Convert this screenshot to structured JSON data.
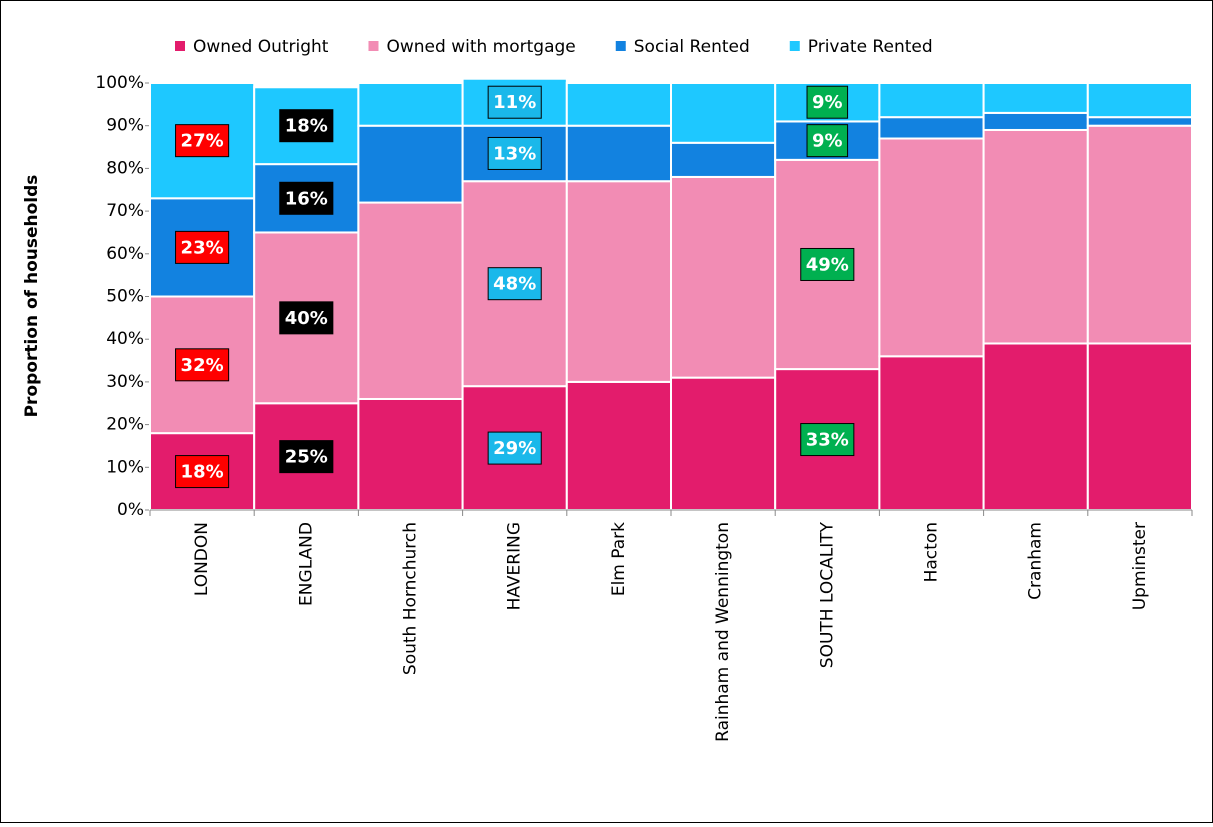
{
  "chart_data": {
    "type": "stacked_bar",
    "y_label": "Proportion of households",
    "categories": [
      "LONDON",
      "ENGLAND",
      "South Hornchurch",
      "HAVERING",
      "Elm Park",
      "Rainham and Wennington",
      "SOUTH LOCALITY",
      "Hacton",
      "Cranham",
      "Upminster"
    ],
    "series": [
      {
        "name": "Owned Outright",
        "color": "#e31c6c",
        "values": [
          18,
          25,
          26,
          29,
          30,
          31,
          33,
          36,
          39,
          39
        ],
        "value_labels": [
          "18%",
          "25%",
          null,
          "29%",
          null,
          null,
          "33%",
          null,
          null,
          null
        ]
      },
      {
        "name": "Owned with mortgage",
        "color": "#f28cb4",
        "values": [
          32,
          40,
          46,
          48,
          47,
          47,
          49,
          51,
          50,
          51
        ],
        "value_labels": [
          "32%",
          "40%",
          null,
          "48%",
          null,
          null,
          "49%",
          null,
          null,
          null
        ]
      },
      {
        "name": "Social Rented",
        "color": "#1282e0",
        "values": [
          23,
          16,
          18,
          13,
          13,
          8,
          9,
          5,
          4,
          2
        ],
        "value_labels": [
          "23%",
          "16%",
          null,
          "13%",
          null,
          null,
          "9%",
          null,
          null,
          null
        ]
      },
      {
        "name": "Private Rented",
        "color": "#1ec8ff",
        "values": [
          27,
          18,
          10,
          11,
          10,
          14,
          9,
          8,
          7,
          8
        ],
        "value_labels": [
          "27%",
          "18%",
          null,
          "11%",
          null,
          null,
          "9%",
          null,
          null,
          null
        ]
      }
    ],
    "label_colors": [
      "#ff0000",
      "#000000",
      null,
      "#1ab8ea",
      null,
      null,
      "#00b050",
      null,
      null,
      null
    ],
    "ylim": [
      0,
      100
    ],
    "yticks": [
      {
        "value": 0,
        "label": "0%"
      },
      {
        "value": 10,
        "label": "10%"
      },
      {
        "value": 20,
        "label": "20%"
      },
      {
        "value": 30,
        "label": "30%"
      },
      {
        "value": 40,
        "label": "40%"
      },
      {
        "value": 50,
        "label": "50%"
      },
      {
        "value": 60,
        "label": "60%"
      },
      {
        "value": 70,
        "label": "70%"
      },
      {
        "value": 80,
        "label": "80%"
      },
      {
        "value": 90,
        "label": "90%"
      },
      {
        "value": 100,
        "label": "100%"
      }
    ],
    "legend": "top"
  }
}
